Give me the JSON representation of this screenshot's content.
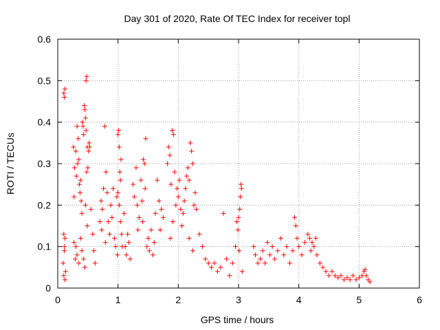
{
  "chart_data": {
    "type": "scatter",
    "title": "Day 301 of 2020, Rate Of TEC Index for receiver topl",
    "xlabel": "GPS time / hours",
    "ylabel": "ROTI / TECUs",
    "xlim": [
      0,
      6
    ],
    "ylim": [
      0,
      0.6
    ],
    "xticks": [
      0,
      1,
      2,
      3,
      4,
      5,
      6
    ],
    "xtick_labels": [
      "0",
      "1",
      "2",
      "3",
      "4",
      "5",
      "6"
    ],
    "yticks": [
      0,
      0.1,
      0.2,
      0.3,
      0.4,
      0.5,
      0.6
    ],
    "ytick_labels": [
      "0",
      "0.1",
      "0.2",
      "0.3",
      "0.4",
      "0.5",
      "0.6"
    ],
    "grid": true,
    "marker": "+",
    "series": [
      {
        "name": "ROTI",
        "color": "#ff0000",
        "points": [
          [
            0.1,
            0.47
          ],
          [
            0.12,
            0.48
          ],
          [
            0.11,
            0.46
          ],
          [
            0.1,
            0.13
          ],
          [
            0.12,
            0.12
          ],
          [
            0.11,
            0.1
          ],
          [
            0.09,
            0.06
          ],
          [
            0.1,
            0.03
          ],
          [
            0.12,
            0.02
          ],
          [
            0.13,
            0.04
          ],
          [
            0.11,
            0.09
          ],
          [
            0.26,
            0.34
          ],
          [
            0.28,
            0.29
          ],
          [
            0.27,
            0.22
          ],
          [
            0.3,
            0.33
          ],
          [
            0.31,
            0.27
          ],
          [
            0.32,
            0.39
          ],
          [
            0.34,
            0.36
          ],
          [
            0.35,
            0.31
          ],
          [
            0.36,
            0.25
          ],
          [
            0.38,
            0.26
          ],
          [
            0.39,
            0.21
          ],
          [
            0.4,
            0.18
          ],
          [
            0.37,
            0.23
          ],
          [
            0.33,
            0.3
          ],
          [
            0.41,
            0.4
          ],
          [
            0.42,
            0.39
          ],
          [
            0.43,
            0.37
          ],
          [
            0.44,
            0.44
          ],
          [
            0.45,
            0.43
          ],
          [
            0.47,
            0.5
          ],
          [
            0.48,
            0.51
          ],
          [
            0.46,
            0.41
          ],
          [
            0.47,
            0.38
          ],
          [
            0.49,
            0.34
          ],
          [
            0.5,
            0.29
          ],
          [
            0.51,
            0.33
          ],
          [
            0.52,
            0.35
          ],
          [
            0.53,
            0.34
          ],
          [
            0.48,
            0.28
          ],
          [
            0.46,
            0.2
          ],
          [
            0.49,
            0.15
          ],
          [
            0.3,
            0.1
          ],
          [
            0.32,
            0.08
          ],
          [
            0.35,
            0.06
          ],
          [
            0.38,
            0.12
          ],
          [
            0.4,
            0.09
          ],
          [
            0.43,
            0.07
          ],
          [
            0.45,
            0.05
          ],
          [
            0.27,
            0.11
          ],
          [
            0.29,
            0.07
          ],
          [
            0.55,
            0.19
          ],
          [
            0.58,
            0.13
          ],
          [
            0.6,
            0.09
          ],
          [
            0.62,
            0.06
          ],
          [
            0.7,
            0.16
          ],
          [
            0.72,
            0.21
          ],
          [
            0.74,
            0.19
          ],
          [
            0.76,
            0.24
          ],
          [
            0.78,
            0.39
          ],
          [
            0.8,
            0.28
          ],
          [
            0.82,
            0.23
          ],
          [
            0.84,
            0.16
          ],
          [
            0.86,
            0.13
          ],
          [
            0.88,
            0.2
          ],
          [
            0.9,
            0.17
          ],
          [
            0.92,
            0.24
          ],
          [
            0.94,
            0.12
          ],
          [
            0.96,
            0.1
          ],
          [
            0.73,
            0.14
          ],
          [
            0.79,
            0.11
          ],
          [
            0.98,
            0.22
          ],
          [
            1.0,
            0.37
          ],
          [
            1.01,
            0.38
          ],
          [
            1.02,
            0.34
          ],
          [
            1.03,
            0.28
          ],
          [
            1.04,
            0.26
          ],
          [
            1.05,
            0.31
          ],
          [
            1.0,
            0.23
          ],
          [
            1.02,
            0.2
          ],
          [
            1.04,
            0.16
          ],
          [
            1.06,
            0.13
          ],
          [
            1.07,
            0.1
          ],
          [
            0.99,
            0.08
          ],
          [
            1.1,
            0.18
          ],
          [
            1.12,
            0.1
          ],
          [
            1.14,
            0.08
          ],
          [
            1.16,
            0.13
          ],
          [
            1.18,
            0.11
          ],
          [
            1.2,
            0.07
          ],
          [
            1.25,
            0.25
          ],
          [
            1.27,
            0.22
          ],
          [
            1.3,
            0.29
          ],
          [
            1.32,
            0.2
          ],
          [
            1.35,
            0.17
          ],
          [
            1.33,
            0.14
          ],
          [
            1.38,
            0.26
          ],
          [
            1.4,
            0.21
          ],
          [
            1.42,
            0.31
          ],
          [
            1.44,
            0.3
          ],
          [
            1.46,
            0.36
          ],
          [
            1.45,
            0.24
          ],
          [
            1.41,
            0.16
          ],
          [
            1.5,
            0.12
          ],
          [
            1.52,
            0.09
          ],
          [
            1.55,
            0.14
          ],
          [
            1.58,
            0.08
          ],
          [
            1.62,
            0.18
          ],
          [
            1.65,
            0.26
          ],
          [
            1.68,
            0.21
          ],
          [
            1.7,
            0.14
          ],
          [
            1.72,
            0.19
          ],
          [
            1.75,
            0.17
          ],
          [
            1.6,
            0.11
          ],
          [
            1.48,
            0.1
          ],
          [
            1.82,
            0.3
          ],
          [
            1.84,
            0.34
          ],
          [
            1.86,
            0.32
          ],
          [
            1.88,
            0.25
          ],
          [
            1.9,
            0.38
          ],
          [
            1.92,
            0.37
          ],
          [
            1.94,
            0.28
          ],
          [
            1.96,
            0.2
          ],
          [
            1.98,
            0.24
          ],
          [
            2.0,
            0.22
          ],
          [
            2.02,
            0.26
          ],
          [
            2.04,
            0.19
          ],
          [
            2.06,
            0.15
          ],
          [
            1.91,
            0.16
          ],
          [
            1.87,
            0.12
          ],
          [
            2.08,
            0.18
          ],
          [
            2.1,
            0.21
          ],
          [
            2.12,
            0.24
          ],
          [
            2.14,
            0.27
          ],
          [
            2.16,
            0.29
          ],
          [
            2.18,
            0.26
          ],
          [
            2.2,
            0.35
          ],
          [
            2.22,
            0.33
          ],
          [
            2.24,
            0.3
          ],
          [
            2.26,
            0.2
          ],
          [
            2.28,
            0.23
          ],
          [
            2.3,
            0.19
          ],
          [
            2.18,
            0.12
          ],
          [
            2.24,
            0.09
          ],
          [
            2.35,
            0.13
          ],
          [
            2.4,
            0.1
          ],
          [
            2.45,
            0.07
          ],
          [
            2.5,
            0.06
          ],
          [
            2.55,
            0.05
          ],
          [
            2.6,
            0.06
          ],
          [
            2.65,
            0.04
          ],
          [
            2.7,
            0.05
          ],
          [
            2.75,
            0.18
          ],
          [
            2.8,
            0.07
          ],
          [
            2.85,
            0.03
          ],
          [
            2.9,
            0.06
          ],
          [
            2.95,
            0.1
          ],
          [
            2.97,
            0.16
          ],
          [
            2.99,
            0.14
          ],
          [
            3.0,
            0.17
          ],
          [
            3.02,
            0.19
          ],
          [
            3.03,
            0.22
          ],
          [
            3.04,
            0.25
          ],
          [
            3.05,
            0.24
          ],
          [
            3.01,
            0.09
          ],
          [
            3.06,
            0.04
          ],
          [
            3.25,
            0.1
          ],
          [
            3.28,
            0.08
          ],
          [
            3.32,
            0.06
          ],
          [
            3.36,
            0.07
          ],
          [
            3.4,
            0.09
          ],
          [
            3.44,
            0.06
          ],
          [
            3.48,
            0.11
          ],
          [
            3.52,
            0.08
          ],
          [
            3.56,
            0.1
          ],
          [
            3.6,
            0.07
          ],
          [
            3.65,
            0.09
          ],
          [
            3.7,
            0.12
          ],
          [
            3.75,
            0.08
          ],
          [
            3.8,
            0.1
          ],
          [
            3.85,
            0.06
          ],
          [
            3.9,
            0.09
          ],
          [
            3.93,
            0.17
          ],
          [
            3.95,
            0.15
          ],
          [
            3.97,
            0.12
          ],
          [
            4.0,
            0.1
          ],
          [
            4.05,
            0.08
          ],
          [
            4.1,
            0.11
          ],
          [
            4.15,
            0.13
          ],
          [
            4.18,
            0.12
          ],
          [
            4.2,
            0.09
          ],
          [
            4.22,
            0.11
          ],
          [
            4.25,
            0.1
          ],
          [
            4.28,
            0.12
          ],
          [
            4.3,
            0.08
          ],
          [
            4.35,
            0.06
          ],
          [
            4.4,
            0.05
          ],
          [
            4.45,
            0.04
          ],
          [
            4.5,
            0.03
          ],
          [
            4.55,
            0.04
          ],
          [
            4.6,
            0.03
          ],
          [
            4.65,
            0.025
          ],
          [
            4.7,
            0.03
          ],
          [
            4.75,
            0.02
          ],
          [
            4.8,
            0.025
          ],
          [
            4.85,
            0.02
          ],
          [
            4.9,
            0.03
          ],
          [
            4.95,
            0.02
          ],
          [
            5.0,
            0.025
          ],
          [
            5.05,
            0.03
          ],
          [
            5.08,
            0.04
          ],
          [
            5.1,
            0.045
          ],
          [
            5.12,
            0.03
          ],
          [
            5.15,
            0.02
          ],
          [
            5.18,
            0.015
          ]
        ]
      }
    ]
  }
}
